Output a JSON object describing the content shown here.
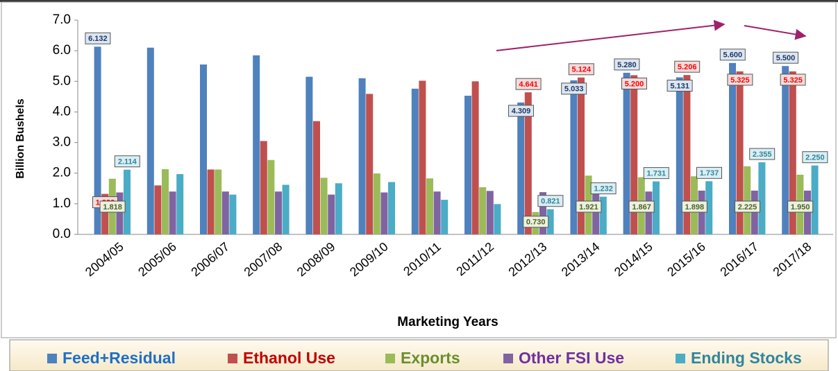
{
  "chart_data": {
    "type": "bar",
    "xlabel": "Marketing Years",
    "ylabel": "Billion Bushels",
    "categories": [
      "2004/05",
      "2005/06",
      "2006/07",
      "2007/08",
      "2008/09",
      "2009/10",
      "2010/11",
      "2011/12",
      "2012/13",
      "2013/14",
      "2014/15",
      "2015/16",
      "2016/17",
      "2017/18"
    ],
    "series": [
      {
        "name": "Feed+Residual",
        "color": "#4f81bd",
        "values": [
          6.132,
          6.1,
          5.55,
          5.85,
          5.15,
          5.1,
          4.76,
          4.53,
          4.309,
          5.033,
          5.28,
          5.131,
          5.6,
          5.5
        ],
        "value_labels": [
          "6.132",
          null,
          null,
          null,
          null,
          null,
          null,
          null,
          "4.309",
          "5.033",
          "5.280",
          "5.131",
          "5.600",
          "5.500"
        ]
      },
      {
        "name": "Ethanol Use",
        "color": "#c0504d",
        "values": [
          1.323,
          1.6,
          2.12,
          3.05,
          3.7,
          4.59,
          5.02,
          5.0,
          4.641,
          5.124,
          5.2,
          5.206,
          5.325,
          5.325
        ],
        "value_labels": [
          "1.323",
          null,
          null,
          null,
          null,
          null,
          null,
          null,
          "4.641",
          "5.124",
          "5.200",
          "5.206",
          "5.325",
          "5.325"
        ]
      },
      {
        "name": "Exports",
        "color": "#9bbb59",
        "values": [
          1.818,
          2.13,
          2.12,
          2.43,
          1.85,
          1.99,
          1.83,
          1.54,
          0.73,
          1.921,
          1.867,
          1.898,
          2.225,
          1.95
        ],
        "value_labels": [
          "1.818",
          null,
          null,
          null,
          null,
          null,
          null,
          null,
          "0.730",
          "1.921",
          "1.867",
          "1.898",
          "2.225",
          "1.950"
        ]
      },
      {
        "name": "Other FSI Use",
        "color": "#8064a2",
        "values": [
          1.37,
          1.4,
          1.4,
          1.4,
          1.3,
          1.37,
          1.4,
          1.42,
          1.38,
          1.4,
          1.4,
          1.43,
          1.43,
          1.43
        ]
      },
      {
        "name": "Ending Stocks",
        "color": "#4bacc6",
        "values": [
          2.114,
          1.97,
          1.3,
          1.62,
          1.67,
          1.71,
          1.13,
          0.99,
          0.821,
          1.232,
          1.731,
          1.737,
          2.355,
          2.25
        ],
        "value_labels": [
          "2.114",
          null,
          null,
          null,
          null,
          null,
          null,
          null,
          "0.821",
          "1.232",
          "1.731",
          "1.737",
          "2.355",
          "2.250"
        ]
      }
    ],
    "ylim": [
      0,
      7
    ],
    "yticks": [
      {
        "value": 0,
        "label": "0.0"
      },
      {
        "value": 1,
        "label": "1.0"
      },
      {
        "value": 2,
        "label": "2.0"
      },
      {
        "value": 3,
        "label": "3.0"
      },
      {
        "value": 4,
        "label": "4.0"
      },
      {
        "value": 5,
        "label": "5.0"
      },
      {
        "value": 6,
        "label": "6.0"
      },
      {
        "value": 7,
        "label": "7.0"
      }
    ],
    "grid": false,
    "legend": "bottom"
  }
}
